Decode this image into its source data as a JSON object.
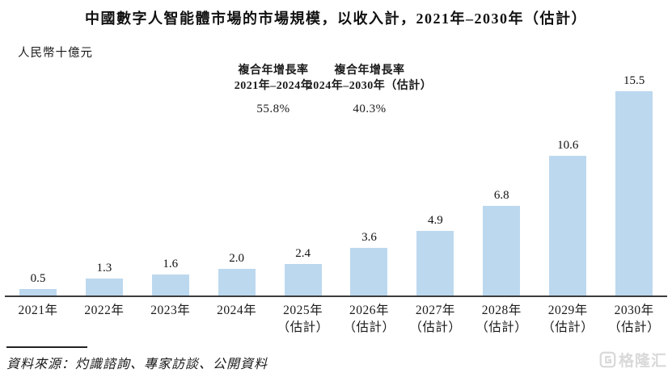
{
  "page": {
    "title": "中國數字人智能體市場的市場規模，以收入計，2021年–2030年（估計）",
    "unit_label": "人民幣十億元",
    "source": "資料來源：灼識諮詢、專家訪談、公開資料"
  },
  "annotations": [
    {
      "line1": "複合年增長率",
      "line2": "2021年–2024年",
      "value": "55.8%"
    },
    {
      "line1": "複合年增長率",
      "line2": "2024年–2030年（估計）",
      "value": "40.3%"
    }
  ],
  "chart_data": {
    "type": "bar",
    "title": "中國數字人智能體市場的市場規模，以收入計，2021年–2030年（估計）",
    "ylabel": "人民幣十億元",
    "xlabel": "",
    "categories": [
      "2021年",
      "2022年",
      "2023年",
      "2024年",
      "2025年",
      "2026年",
      "2027年",
      "2028年",
      "2029年",
      "2030年"
    ],
    "category_notes": [
      "",
      "",
      "",
      "",
      "（估計）",
      "（估計）",
      "（估計）",
      "（估計）",
      "（估計）",
      "（估計）"
    ],
    "values": [
      0.5,
      1.3,
      1.6,
      2.0,
      2.4,
      3.6,
      4.9,
      6.8,
      10.6,
      15.5
    ],
    "ylim": [
      0,
      16
    ],
    "grid": false,
    "bar_color": "#bcd8ee",
    "cagr_annotations": [
      {
        "label": "複合年增長率 2021年–2024年",
        "value": "55.8%"
      },
      {
        "label": "複合年增長率 2024年–2030年（估計）",
        "value": "40.3%"
      }
    ]
  },
  "watermark": {
    "icon": "gelonghui-logo",
    "text": "格隆汇",
    "color": "#d9d9d9"
  }
}
